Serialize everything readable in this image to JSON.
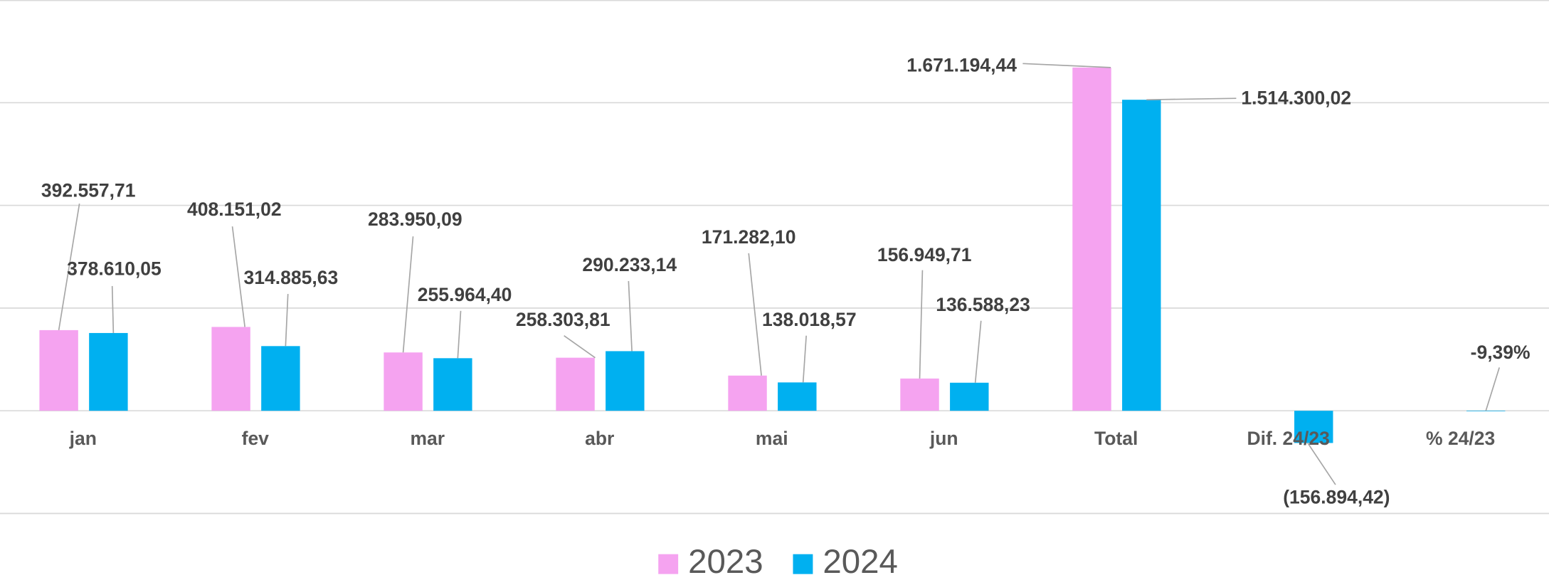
{
  "chart_data": {
    "type": "bar",
    "categories": [
      "jan",
      "fev",
      "mar",
      "abr",
      "mai",
      "jun",
      "Total",
      "Dif. 24/23",
      "% 24/23"
    ],
    "series": [
      {
        "name": "2023",
        "color": "#f5a3f0",
        "values": [
          392557.71,
          408151.02,
          283950.09,
          258303.81,
          171282.1,
          156949.71,
          1671194.44,
          null,
          null
        ],
        "value_labels": [
          "392.557,71",
          "408.151,02",
          "283.950,09",
          "258.303,81",
          "171.282,10",
          "156.949,71",
          "1.671.194,44",
          null,
          null
        ]
      },
      {
        "name": "2024",
        "color": "#00b0f0",
        "values": [
          378610.05,
          314885.63,
          255964.4,
          290233.14,
          138018.57,
          136588.23,
          1514300.02,
          -156894.42,
          -9.39
        ],
        "value_labels": [
          "378.610,05",
          "314.885,63",
          "255.964,40",
          "290.233,14",
          "138.018,57",
          "136.588,23",
          "1.514.300,02",
          "(156.894,42)",
          "-9,39%"
        ]
      }
    ],
    "ylim": [
      -500000,
      2000000
    ],
    "yticks": [
      -500000,
      0,
      500000,
      1000000,
      1500000,
      2000000
    ],
    "grid": true,
    "legend": "bottom"
  }
}
